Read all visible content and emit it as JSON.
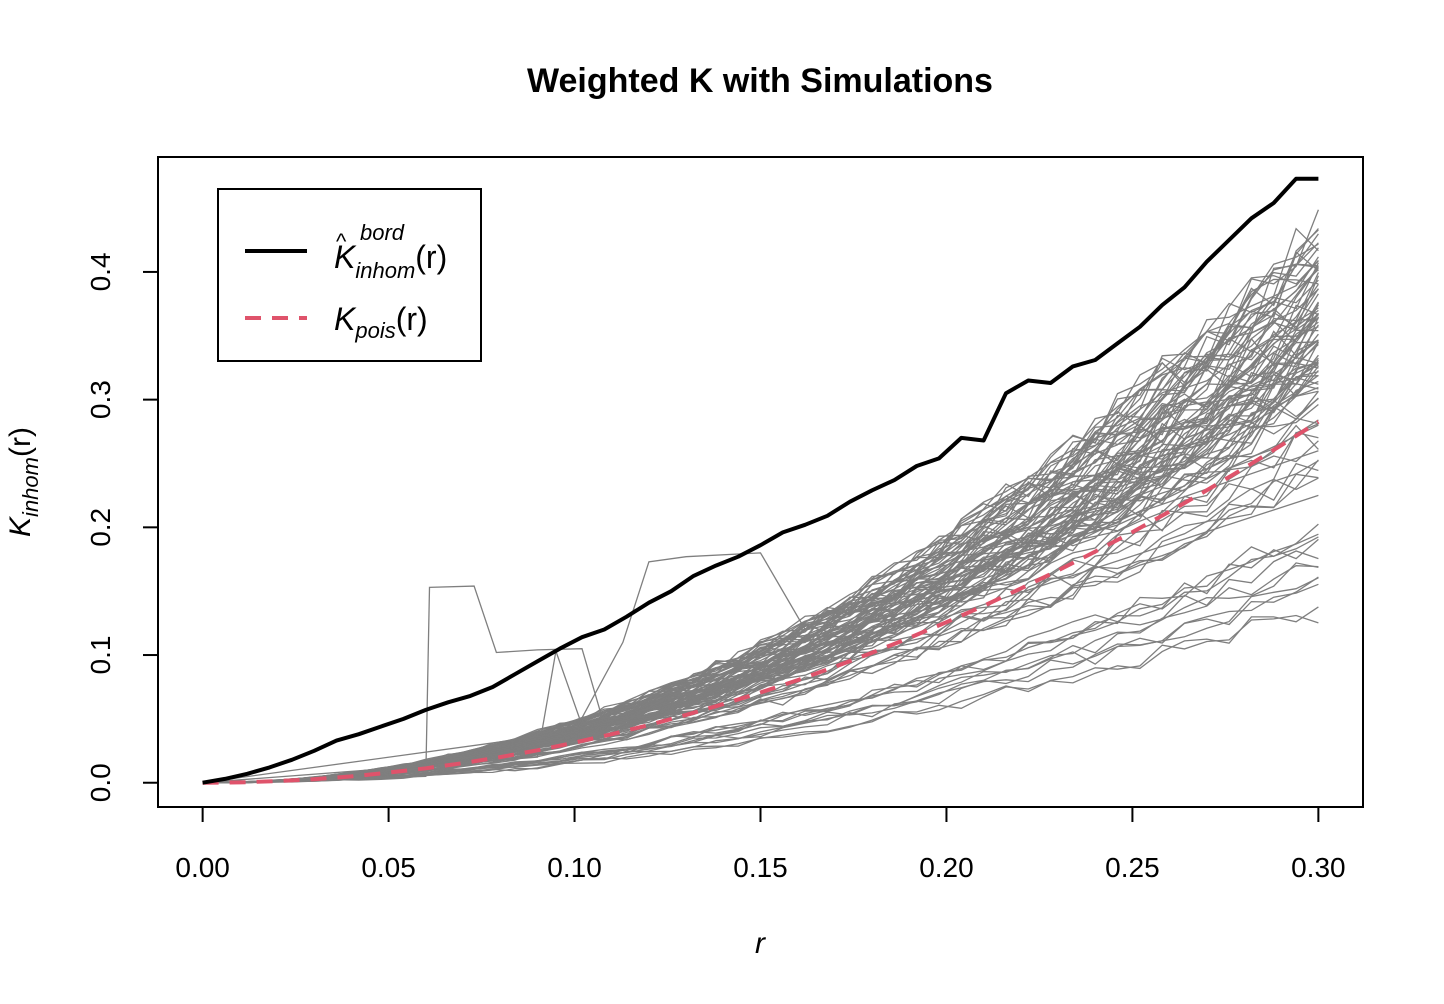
{
  "chart_data": {
    "type": "line",
    "title": "Weighted K with Simulations",
    "xlabel": "r",
    "ylabel": {
      "base": "K",
      "sub": "inhom",
      "suffix": "(r)"
    },
    "xlim": [
      -0.012,
      0.312
    ],
    "ylim": [
      -0.019,
      0.49
    ],
    "xticks": [
      "0.00",
      "0.05",
      "0.10",
      "0.15",
      "0.20",
      "0.25",
      "0.30"
    ],
    "yticks": [
      "0.0",
      "0.1",
      "0.2",
      "0.3",
      "0.4"
    ],
    "grid": false,
    "legend_position": "top-left",
    "legend": [
      {
        "base": "K",
        "hat": "^",
        "sub": "inhom",
        "sup": "bord",
        "suffix": "(r)",
        "style": "solid",
        "color": "#000000"
      },
      {
        "base": "K",
        "sub": "pois",
        "suffix": "(r)",
        "style": "dashed",
        "color": "#DF536B"
      }
    ],
    "colors": {
      "observed": "#000000",
      "theoretical": "#DF536B",
      "simulations": "#7F7F7F"
    },
    "simulation_count": 99,
    "series": [
      {
        "id": "observed",
        "x": [
          0.0,
          0.006,
          0.012,
          0.018,
          0.024,
          0.03,
          0.036,
          0.042,
          0.048,
          0.054,
          0.06,
          0.066,
          0.072,
          0.078,
          0.084,
          0.09,
          0.096,
          0.102,
          0.108,
          0.114,
          0.12,
          0.126,
          0.132,
          0.138,
          0.144,
          0.15,
          0.156,
          0.162,
          0.168,
          0.174,
          0.18,
          0.186,
          0.192,
          0.198,
          0.204,
          0.21,
          0.216,
          0.222,
          0.228,
          0.234,
          0.24,
          0.246,
          0.252,
          0.258,
          0.264,
          0.27,
          0.276,
          0.282,
          0.288,
          0.294,
          0.3
        ],
        "y": [
          0.0,
          0.003,
          0.007,
          0.012,
          0.018,
          0.025,
          0.033,
          0.038,
          0.044,
          0.05,
          0.057,
          0.063,
          0.068,
          0.075,
          0.085,
          0.095,
          0.105,
          0.114,
          0.12,
          0.13,
          0.141,
          0.15,
          0.162,
          0.17,
          0.177,
          0.186,
          0.196,
          0.202,
          0.209,
          0.22,
          0.229,
          0.237,
          0.248,
          0.254,
          0.27,
          0.268,
          0.305,
          0.315,
          0.313,
          0.326,
          0.331,
          0.344,
          0.357,
          0.374,
          0.388,
          0.408,
          0.425,
          0.442,
          0.454,
          0.473,
          0.473
        ]
      },
      {
        "id": "theoretical",
        "x": [
          0.0,
          0.01,
          0.02,
          0.03,
          0.04,
          0.05,
          0.06,
          0.07,
          0.08,
          0.09,
          0.1,
          0.11,
          0.12,
          0.13,
          0.14,
          0.15,
          0.16,
          0.17,
          0.18,
          0.19,
          0.2,
          0.21,
          0.22,
          0.23,
          0.24,
          0.25,
          0.26,
          0.27,
          0.28,
          0.29,
          0.3
        ],
        "y": [
          0.0,
          0.0003,
          0.0013,
          0.0028,
          0.005,
          0.0079,
          0.0113,
          0.0154,
          0.0201,
          0.0254,
          0.0314,
          0.038,
          0.0452,
          0.0531,
          0.0616,
          0.0707,
          0.0804,
          0.0908,
          0.1018,
          0.1134,
          0.1257,
          0.1385,
          0.1521,
          0.1662,
          0.181,
          0.1963,
          0.2124,
          0.229,
          0.2463,
          0.2642,
          0.2827
        ]
      }
    ]
  }
}
